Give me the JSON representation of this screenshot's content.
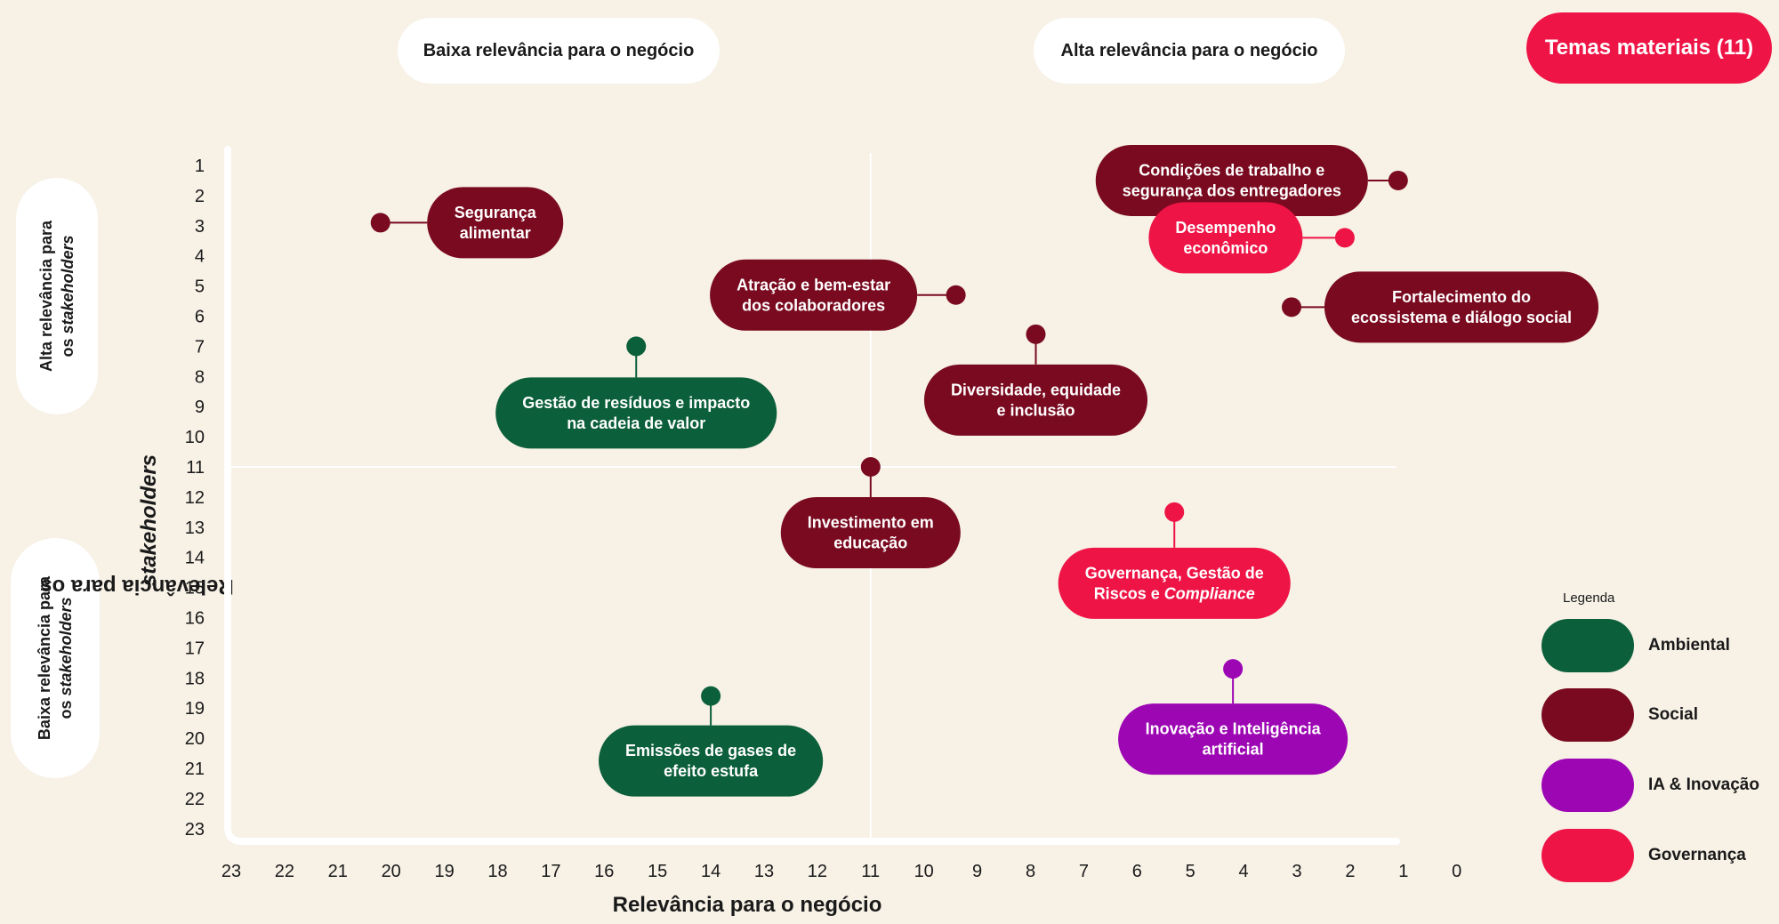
{
  "header": {
    "low_business_label": "Baixa relevância para o negócio",
    "high_business_label": "Alta relevância para o negócio",
    "badge_label": "Temas materiais (11)"
  },
  "side": {
    "high_stakeholders_line1": "Alta relevância para",
    "high_stakeholders_line2_prefix": "os ",
    "high_stakeholders_line2_em": "stakeholders",
    "low_stakeholders_line1": "Baixa relevância para",
    "low_stakeholders_line2_prefix": "os ",
    "low_stakeholders_line2_em": "stakeholders"
  },
  "legend": {
    "title": "Legenda",
    "items": [
      {
        "label": "Ambiental",
        "color": "#0b5f3a"
      },
      {
        "label": "Social",
        "color": "#7a0a1f"
      },
      {
        "label": "IA & Inovação",
        "color": "#9c06b3"
      },
      {
        "label": "Governança",
        "color": "#ee1446"
      }
    ]
  },
  "chart_data": {
    "type": "scatter",
    "xlabel": "Relevância para o negócio",
    "ylabel_prefix": "Relevância para os ",
    "ylabel_em": "stakeholders",
    "xlim": [
      23,
      0
    ],
    "ylim": [
      1,
      23
    ],
    "x_ticks": [
      23,
      22,
      21,
      20,
      19,
      18,
      17,
      16,
      15,
      14,
      13,
      12,
      11,
      10,
      9,
      8,
      7,
      6,
      5,
      4,
      3,
      2,
      1,
      0
    ],
    "y_ticks": [
      1,
      2,
      3,
      4,
      5,
      6,
      7,
      8,
      9,
      10,
      11,
      12,
      13,
      14,
      15,
      16,
      17,
      18,
      19,
      20,
      21,
      22,
      23
    ],
    "quadrant_split": {
      "x": 11,
      "y": 11
    },
    "categories": {
      "Ambiental": "#0b5f3a",
      "Social": "#7a0a1f",
      "IA & Inovação": "#9c06b3",
      "Governança": "#ee1446"
    },
    "points": [
      {
        "name": "Segurança alimentar",
        "lines": [
          "Segurança",
          "alimentar"
        ],
        "x": 20.2,
        "y": 2.9,
        "category": "Social"
      },
      {
        "name": "Condições de trabalho e segurança dos entregadores",
        "lines": [
          "Condições de trabalho e",
          "segurança dos entregadores"
        ],
        "x": 1.1,
        "y": 1.5,
        "category": "Social"
      },
      {
        "name": "Desempenho econômico",
        "lines": [
          "Desempenho",
          "econômico"
        ],
        "x": 2.1,
        "y": 3.4,
        "category": "Governança"
      },
      {
        "name": "Atração e bem-estar dos colaboradores",
        "lines": [
          "Atração e bem-estar",
          "dos colaboradores"
        ],
        "x": 9.4,
        "y": 5.3,
        "category": "Social"
      },
      {
        "name": "Fortalecimento do ecossistema e diálogo social",
        "lines": [
          "Fortalecimento do",
          "ecossistema e diálogo social"
        ],
        "x": 3.1,
        "y": 5.7,
        "category": "Social"
      },
      {
        "name": "Diversidade, equidade e inclusão",
        "lines": [
          "Diversidade, equidade",
          "e inclusão"
        ],
        "x": 7.9,
        "y": 6.6,
        "category": "Social"
      },
      {
        "name": "Gestão de resíduos e impacto na cadeia de valor",
        "lines": [
          "Gestão de resíduos e impacto",
          "na cadeia de valor"
        ],
        "x": 15.4,
        "y": 7.0,
        "category": "Ambiental"
      },
      {
        "name": "Investimento em educação",
        "lines": [
          "Investimento em",
          "educação"
        ],
        "x": 11.0,
        "y": 11.0,
        "category": "Social"
      },
      {
        "name": "Governança, Gestão de Riscos e Compliance",
        "lines": [
          "Governança, Gestão de",
          "Riscos e |Compliance"
        ],
        "x": 5.3,
        "y": 12.5,
        "category": "Governança"
      },
      {
        "name": "Inovação e Inteligência artificial",
        "lines": [
          "Inovação e Inteligência",
          "artificial"
        ],
        "x": 4.2,
        "y": 17.7,
        "category": "IA & Inovação"
      },
      {
        "name": "Emissões de gases de efeito estufa",
        "lines": [
          "Emissões de gases de",
          "efeito estufa"
        ],
        "x": 14.0,
        "y": 18.6,
        "category": "Ambiental"
      }
    ]
  }
}
